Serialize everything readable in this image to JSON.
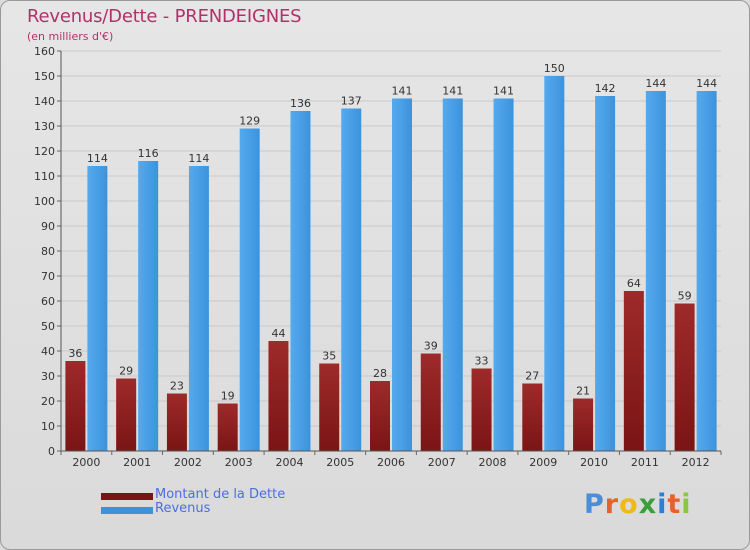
{
  "title": "Revenus/Dette - PRENDEIGNES",
  "subtitle": "(en milliers d'€)",
  "brand": {
    "text": "Proxiti",
    "letters": [
      "P",
      "r",
      "o",
      "x",
      "i",
      "t",
      "i"
    ],
    "letter_colors": [
      "#4a8ed8",
      "#e5632b",
      "#f0b818",
      "#3a9e3a",
      "#2b7fd6",
      "#e5632b",
      "#8cc63e"
    ]
  },
  "colors": {
    "debt": "#7a1515",
    "debt_light": "#9e2a2a",
    "revenue": "#3d93db",
    "revenue_light": "#55aaee",
    "grid": "#c9c9c9",
    "axis_text": "#333333"
  },
  "chart_data": {
    "type": "bar",
    "title": "Revenus/Dette - PRENDEIGNES",
    "subtitle": "(en milliers d'€)",
    "categories": [
      "2000",
      "2001",
      "2002",
      "2003",
      "2004",
      "2005",
      "2006",
      "2007",
      "2008",
      "2009",
      "2010",
      "2011",
      "2012"
    ],
    "series": [
      {
        "name": "Montant de la Dette",
        "values": [
          36,
          29,
          23,
          19,
          44,
          35,
          28,
          39,
          33,
          27,
          21,
          64,
          59
        ]
      },
      {
        "name": "Revenus",
        "values": [
          114,
          116,
          114,
          129,
          136,
          137,
          141,
          141,
          141,
          150,
          142,
          144,
          144
        ]
      }
    ],
    "ylim": [
      0,
      160
    ],
    "yticks": [
      "0",
      "10",
      "20",
      "30",
      "40",
      "50",
      "60",
      "70",
      "80",
      "90",
      "100",
      "110",
      "120",
      "130",
      "140",
      "150",
      "160"
    ],
    "grid": true,
    "legend": "bottom-left"
  }
}
